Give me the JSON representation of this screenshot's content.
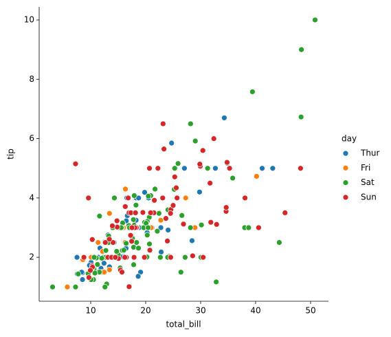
{
  "chart_data": {
    "type": "scatter",
    "x_label": "total_bill",
    "y_label": "tip",
    "legend_title": "day",
    "legend": "right",
    "xlim": [
      0.63,
      53.25
    ],
    "xticks": [
      10,
      20,
      30,
      40,
      50
    ],
    "ylim": [
      0.52,
      10.44
    ],
    "yticks": [
      2,
      4,
      6,
      8,
      10
    ],
    "series": [
      {
        "name": "Thur",
        "color": "#1f77b4",
        "x": [
          27.2,
          22.76,
          17.29,
          19.44,
          16.66,
          10.07,
          32.68,
          15.98,
          34.83,
          13.03,
          18.28,
          24.71,
          21.16,
          10.65,
          12.43,
          24.08,
          11.69,
          13.42,
          14.26,
          15.95,
          12.48,
          29.8,
          8.52,
          14.52,
          11.38,
          22.82,
          19.08,
          20.27,
          11.17,
          12.26,
          18.26,
          8.51,
          10.33,
          14.15,
          16.0,
          13.16,
          17.47,
          34.3,
          41.19,
          27.05,
          16.43,
          8.35,
          18.64,
          11.87,
          9.78,
          7.51,
          19.81,
          28.44,
          15.48,
          16.58,
          7.56,
          10.34,
          43.11,
          13.0,
          13.51,
          18.71,
          12.74,
          13.0,
          16.4,
          20.53,
          16.47,
          18.78
        ],
        "values": [
          4,
          3,
          2.71,
          3,
          3.4,
          1.83,
          5,
          2.03,
          5.17,
          2,
          4,
          5.85,
          3,
          1.5,
          1.8,
          2.92,
          2.31,
          1.68,
          2.5,
          2,
          2.52,
          4.2,
          1.48,
          2,
          2,
          2.18,
          1.5,
          2.83,
          1.5,
          2,
          3.25,
          1.25,
          2,
          2,
          2,
          2.75,
          3.5,
          6.7,
          5,
          5,
          2.3,
          1.5,
          1.36,
          1.63,
          1.73,
          2,
          4.19,
          2.56,
          2.02,
          4,
          1.44,
          2,
          5,
          2,
          2,
          4,
          2.01,
          2,
          2.5,
          4,
          3.23,
          3
        ]
      },
      {
        "name": "Fri",
        "color": "#ff7f0e",
        "x": [
          28.97,
          22.49,
          5.75,
          16.32,
          22.75,
          40.17,
          27.28,
          12.03,
          21.01,
          12.46,
          11.35,
          15.38,
          12.16,
          13.42,
          8.58,
          15.98,
          13.42,
          16.27,
          10.09
        ],
        "values": [
          3,
          3.5,
          1,
          4.3,
          3.25,
          4.73,
          4,
          1.5,
          3,
          1.5,
          2.5,
          3,
          2.2,
          3.48,
          1.92,
          3,
          1.58,
          2.5,
          2
        ]
      },
      {
        "name": "Sat",
        "color": "#2ca02c",
        "x": [
          20.65,
          17.92,
          20.29,
          15.77,
          39.42,
          19.82,
          17.81,
          13.37,
          12.69,
          21.7,
          19.65,
          9.55,
          18.35,
          15.06,
          20.69,
          17.78,
          24.06,
          16.31,
          16.93,
          18.69,
          31.27,
          16.04,
          38.01,
          26.41,
          11.24,
          48.27,
          20.29,
          13.81,
          11.02,
          18.29,
          17.59,
          20.08,
          16.45,
          3.07,
          20.23,
          15.01,
          12.02,
          17.07,
          26.86,
          25.28,
          14.73,
          10.51,
          17.92,
          44.3,
          22.42,
          20.92,
          15.36,
          20.49,
          25.21,
          18.24,
          14.31,
          14.0,
          7.25,
          10.59,
          10.63,
          50.81,
          15.81,
          26.59,
          38.73,
          24.27,
          12.76,
          30.06,
          25.89,
          48.33,
          13.27,
          28.17,
          12.9,
          28.15,
          11.59,
          7.74,
          30.14,
          20.45,
          13.28,
          22.12,
          24.01,
          15.69,
          11.61,
          10.77,
          15.53,
          10.07,
          12.6,
          32.83,
          35.83,
          29.03,
          27.18,
          22.67,
          17.82
        ],
        "values": [
          3.35,
          4.08,
          2.75,
          2.23,
          7.58,
          3.18,
          2.34,
          2,
          2,
          4.3,
          3,
          1.45,
          2.5,
          3,
          2.45,
          3.27,
          3.6,
          2,
          3.07,
          2.31,
          5,
          2.24,
          3,
          1.5,
          1.76,
          6.73,
          3.21,
          2,
          1.98,
          3.76,
          2.64,
          3.15,
          2.47,
          1,
          2.01,
          2.09,
          1.97,
          3,
          3.14,
          5,
          2.2,
          1.25,
          3.08,
          2.5,
          3.48,
          4.08,
          1.64,
          4.06,
          4.29,
          3.76,
          4,
          3,
          1,
          1.61,
          2,
          10,
          3.16,
          3.41,
          3,
          2.03,
          2.23,
          2,
          5.16,
          9,
          2.5,
          6.5,
          1.1,
          3,
          1.5,
          1.44,
          3.09,
          3,
          2.72,
          2.88,
          2,
          3,
          3.39,
          1.47,
          3,
          1.25,
          1,
          1.17,
          4.67,
          5.92,
          2,
          2,
          1.75
        ]
      },
      {
        "name": "Sun",
        "color": "#d62728",
        "x": [
          16.99,
          10.34,
          21.01,
          23.68,
          24.59,
          25.29,
          8.77,
          26.88,
          15.04,
          14.78,
          10.27,
          35.26,
          15.42,
          18.43,
          14.83,
          21.58,
          10.33,
          16.29,
          16.97,
          17.46,
          13.94,
          9.68,
          30.4,
          18.29,
          22.23,
          32.4,
          28.55,
          18.04,
          12.54,
          10.29,
          34.81,
          9.94,
          25.56,
          19.49,
          38.07,
          23.95,
          25.71,
          17.31,
          29.93,
          14.07,
          13.13,
          17.26,
          24.55,
          19.77,
          29.85,
          48.17,
          25.0,
          13.39,
          16.49,
          21.5,
          12.66,
          16.21,
          13.81,
          17.51,
          24.52,
          20.76,
          31.71,
          7.25,
          31.85,
          16.82,
          32.9,
          17.89,
          14.48,
          9.6,
          34.63,
          34.65,
          23.33,
          45.35,
          23.17,
          40.55,
          20.69,
          20.9,
          30.46,
          18.15,
          23.1,
          15.69
        ],
        "values": [
          1.01,
          1.66,
          3.5,
          3.31,
          3.61,
          4.71,
          2,
          3.12,
          1.96,
          3.23,
          1.71,
          5,
          1.57,
          3,
          3.02,
          3.92,
          1.67,
          3.71,
          3.5,
          2.54,
          3.06,
          1.32,
          5.6,
          3,
          5,
          6,
          2.05,
          3,
          2.5,
          2.6,
          5.2,
          1.56,
          4.34,
          3.51,
          4,
          2.55,
          4,
          3.5,
          5.07,
          2.5,
          2,
          2.74,
          2,
          2,
          5.14,
          5,
          3.75,
          2.61,
          2,
          3.5,
          2.5,
          2,
          2,
          3,
          3.48,
          2.24,
          4.5,
          5.15,
          3.18,
          4,
          3.11,
          2,
          2,
          4,
          3.55,
          3.68,
          5.65,
          3.5,
          6.5,
          3,
          5,
          3.5,
          2,
          3.5,
          4,
          1.5
        ]
      }
    ]
  }
}
